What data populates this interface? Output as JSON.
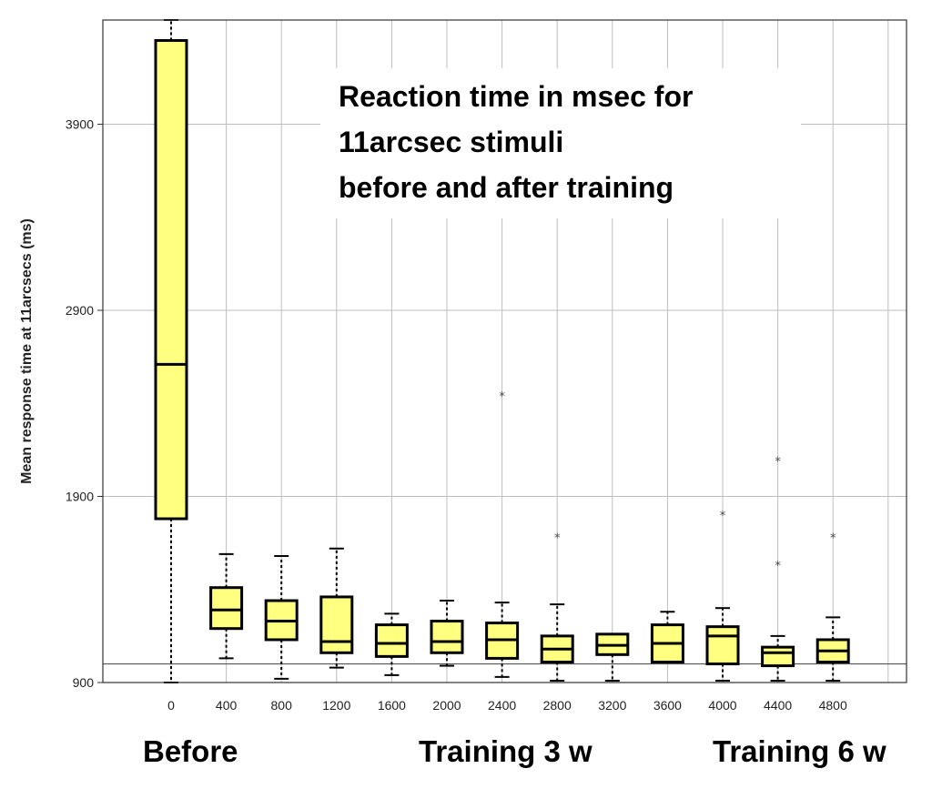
{
  "chart_data": {
    "type": "boxplot",
    "title_lines": [
      "Reaction time in msec for",
      "11arcsec stimuli",
      "before and after training"
    ],
    "ylabel": "Mean response time at 11arcsecs (ms)",
    "xlabel": "",
    "ylim": [
      900,
      4460
    ],
    "yticks": [
      900,
      1900,
      2900,
      3900
    ],
    "grid": true,
    "reference_line": 1000,
    "box_color": "#ffff80",
    "categories": [
      "0",
      "400",
      "800",
      "1200",
      "1600",
      "2000",
      "2400",
      "2800",
      "3200",
      "3600",
      "4000",
      "4400",
      "4800"
    ],
    "boxes": [
      {
        "min": 900,
        "q1": 1780,
        "median": 2610,
        "q3": 4350,
        "max": 4460,
        "outliers": []
      },
      {
        "min": 1030,
        "q1": 1190,
        "median": 1290,
        "q3": 1410,
        "max": 1590,
        "outliers": []
      },
      {
        "min": 920,
        "q1": 1130,
        "median": 1230,
        "q3": 1340,
        "max": 1580,
        "outliers": []
      },
      {
        "min": 980,
        "q1": 1060,
        "median": 1120,
        "q3": 1360,
        "max": 1620,
        "outliers": []
      },
      {
        "min": 940,
        "q1": 1040,
        "median": 1110,
        "q3": 1210,
        "max": 1270,
        "outliers": []
      },
      {
        "min": 990,
        "q1": 1060,
        "median": 1120,
        "q3": 1230,
        "max": 1340,
        "outliers": []
      },
      {
        "min": 930,
        "q1": 1030,
        "median": 1130,
        "q3": 1220,
        "max": 1330,
        "outliers": [
          2440
        ]
      },
      {
        "min": 910,
        "q1": 1010,
        "median": 1080,
        "q3": 1150,
        "max": 1320,
        "outliers": [
          1680
        ]
      },
      {
        "min": 910,
        "q1": 1050,
        "median": 1100,
        "q3": 1160,
        "max": 1160,
        "outliers": []
      },
      {
        "min": 1010,
        "q1": 1010,
        "median": 1110,
        "q3": 1210,
        "max": 1280,
        "outliers": []
      },
      {
        "min": 910,
        "q1": 1000,
        "median": 1150,
        "q3": 1200,
        "max": 1300,
        "outliers": [
          1800
        ]
      },
      {
        "min": 910,
        "q1": 990,
        "median": 1060,
        "q3": 1090,
        "max": 1150,
        "outliers": [
          2090,
          1530
        ]
      },
      {
        "min": 910,
        "q1": 1010,
        "median": 1070,
        "q3": 1130,
        "max": 1250,
        "outliers": [
          1680
        ]
      }
    ],
    "group_labels": [
      "Before",
      "Training 3 w",
      "Training 6 w"
    ]
  }
}
